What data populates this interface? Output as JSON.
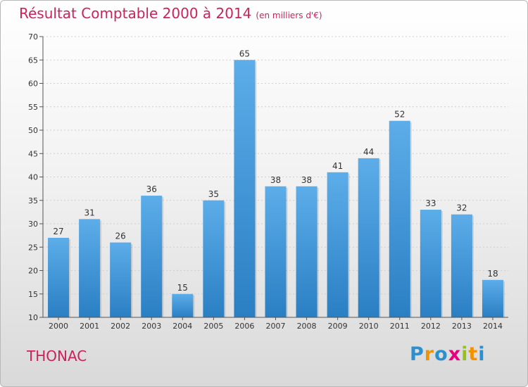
{
  "header": {
    "title": "Résultat Comptable 2000 à 2014",
    "subtitle": "(en milliers d'€)"
  },
  "footer": {
    "place": "THONAC",
    "logo": "Proxiti",
    "logo_letters": [
      {
        "ch": "P",
        "color": "#2b8fd0"
      },
      {
        "ch": "r",
        "color": "#f39200"
      },
      {
        "ch": "o",
        "color": "#2b8fd0"
      },
      {
        "ch": "x",
        "color": "#e6007e"
      },
      {
        "ch": "i",
        "color": "#95c11f"
      },
      {
        "ch": "t",
        "color": "#f39200"
      },
      {
        "ch": "i",
        "color": "#2b8fd0"
      }
    ]
  },
  "chart_data": {
    "type": "bar",
    "title": "Résultat Comptable 2000 à 2014",
    "subtitle": "(en milliers d'€)",
    "categories": [
      "2000",
      "2001",
      "2002",
      "2003",
      "2004",
      "2005",
      "2006",
      "2007",
      "2008",
      "2009",
      "2010",
      "2011",
      "2012",
      "2013",
      "2014"
    ],
    "values": [
      27,
      31,
      26,
      36,
      15,
      35,
      65,
      38,
      38,
      41,
      44,
      52,
      33,
      32,
      18
    ],
    "ylim": [
      10,
      70
    ],
    "yticks": [
      10,
      15,
      20,
      25,
      30,
      35,
      40,
      45,
      50,
      55,
      60,
      65,
      70
    ],
    "grid": true,
    "bar_color": "#3a8fd6"
  }
}
